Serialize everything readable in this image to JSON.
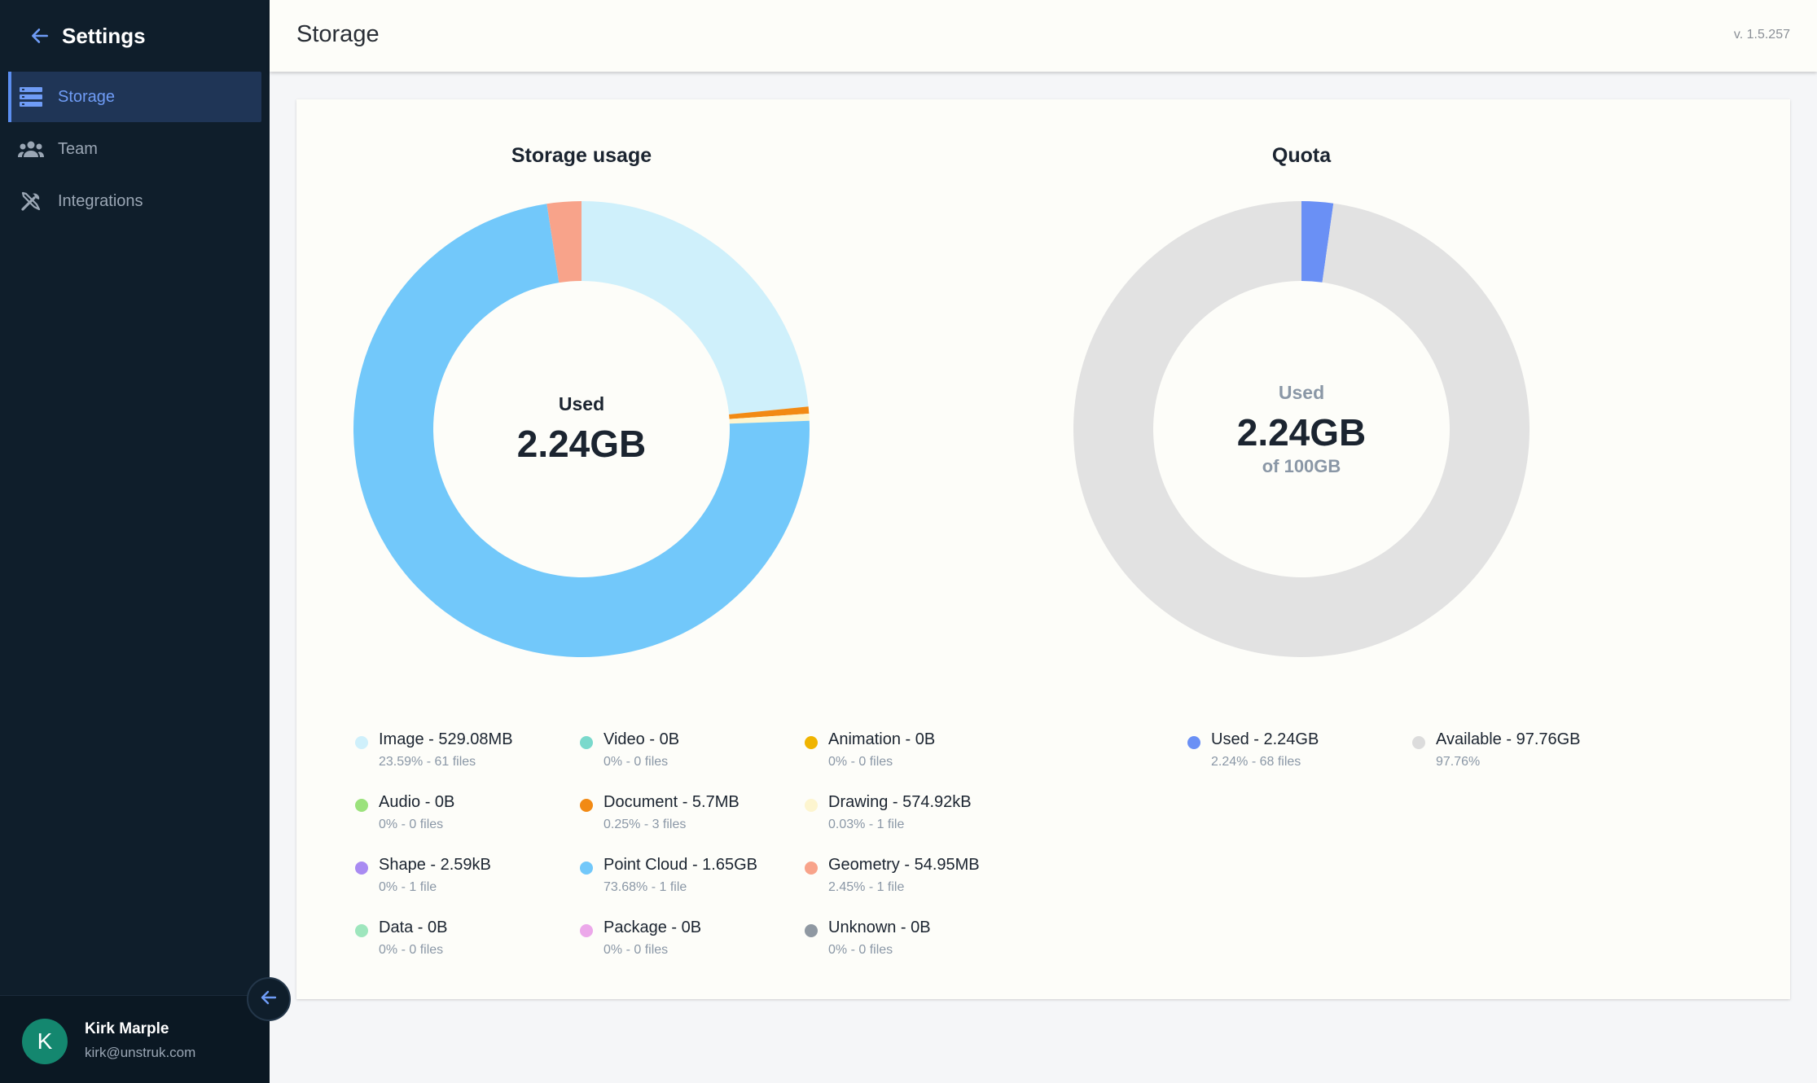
{
  "sidebar": {
    "title": "Settings",
    "items": [
      {
        "label": "Storage",
        "icon": "storage-icon",
        "active": true
      },
      {
        "label": "Team",
        "icon": "team-icon",
        "active": false
      },
      {
        "label": "Integrations",
        "icon": "integrations-icon",
        "active": false
      }
    ],
    "user": {
      "initial": "K",
      "name": "Kirk Marple",
      "email": "kirk@unstruk.com"
    }
  },
  "header": {
    "title": "Storage",
    "version": "v. 1.5.257"
  },
  "colors": {
    "accent": "#5b8ef0",
    "sidebar_bg": "#0f1e2b",
    "image": "#cff0fb",
    "video": "#7ad9cc",
    "animation": "#f0b400",
    "audio": "#9be27c",
    "document": "#f28a14",
    "drawing": "#fdf5cf",
    "shape": "#a98bf2",
    "point_cloud": "#72c8fa",
    "geometry": "#f8a38a",
    "data": "#9ee6bd",
    "package": "#eca8ea",
    "unknown": "#8f98a2",
    "quota_used": "#6a90f5",
    "quota_available": "#e2e2e2"
  },
  "storage": {
    "title": "Storage usage",
    "center_label": "Used",
    "center_value": "2.24GB",
    "legend": [
      {
        "name": "Image - 529.08MB",
        "sub": "23.59% - 61 files",
        "color": "#cff0fb"
      },
      {
        "name": "Video - 0B",
        "sub": "0% - 0 files",
        "color": "#7ad9cc"
      },
      {
        "name": "Animation - 0B",
        "sub": "0% - 0 files",
        "color": "#f0b400"
      },
      {
        "name": "Audio - 0B",
        "sub": "0% - 0 files",
        "color": "#9be27c"
      },
      {
        "name": "Document - 5.7MB",
        "sub": "0.25% - 3 files",
        "color": "#f28a14"
      },
      {
        "name": "Drawing - 574.92kB",
        "sub": "0.03% - 1 file",
        "color": "#fdf5cf"
      },
      {
        "name": "Shape - 2.59kB",
        "sub": "0% - 1 file",
        "color": "#a98bf2"
      },
      {
        "name": "Point Cloud - 1.65GB",
        "sub": "73.68% - 1 file",
        "color": "#72c8fa"
      },
      {
        "name": "Geometry - 54.95MB",
        "sub": "2.45% - 1 file",
        "color": "#f8a38a"
      },
      {
        "name": "Data - 0B",
        "sub": "0% - 0 files",
        "color": "#9ee6bd"
      },
      {
        "name": "Package - 0B",
        "sub": "0% - 0 files",
        "color": "#eca8ea"
      },
      {
        "name": "Unknown - 0B",
        "sub": "0% - 0 files",
        "color": "#8f98a2"
      }
    ]
  },
  "quota": {
    "title": "Quota",
    "center_label": "Used",
    "center_value": "2.24GB",
    "center_sub": "of 100GB",
    "legend": [
      {
        "name": "Used - 2.24GB",
        "sub": "2.24% - 68 files",
        "color": "#6a90f5"
      },
      {
        "name": "Available - 97.76GB",
        "sub": "97.76%",
        "color": "#dcdcdc"
      }
    ]
  },
  "chart_data": [
    {
      "type": "pie",
      "title": "Storage usage",
      "series": [
        {
          "name": "Image",
          "value": 23.59,
          "color": "#cff0fb"
        },
        {
          "name": "Video",
          "value": 0,
          "color": "#7ad9cc"
        },
        {
          "name": "Animation",
          "value": 0,
          "color": "#f0b400"
        },
        {
          "name": "Audio",
          "value": 0,
          "color": "#9be27c"
        },
        {
          "name": "Document",
          "value": 0.25,
          "color": "#f28a14"
        },
        {
          "name": "Drawing",
          "value": 0.03,
          "color": "#fdf5cf"
        },
        {
          "name": "Shape",
          "value": 0,
          "color": "#a98bf2"
        },
        {
          "name": "Point Cloud",
          "value": 73.68,
          "color": "#72c8fa"
        },
        {
          "name": "Geometry",
          "value": 2.45,
          "color": "#f8a38a"
        },
        {
          "name": "Data",
          "value": 0,
          "color": "#9ee6bd"
        },
        {
          "name": "Package",
          "value": 0,
          "color": "#eca8ea"
        },
        {
          "name": "Unknown",
          "value": 0,
          "color": "#8f98a2"
        }
      ]
    },
    {
      "type": "pie",
      "title": "Quota",
      "series": [
        {
          "name": "Used",
          "value": 2.24,
          "color": "#6a90f5"
        },
        {
          "name": "Available",
          "value": 97.76,
          "color": "#e2e2e2"
        }
      ]
    }
  ]
}
